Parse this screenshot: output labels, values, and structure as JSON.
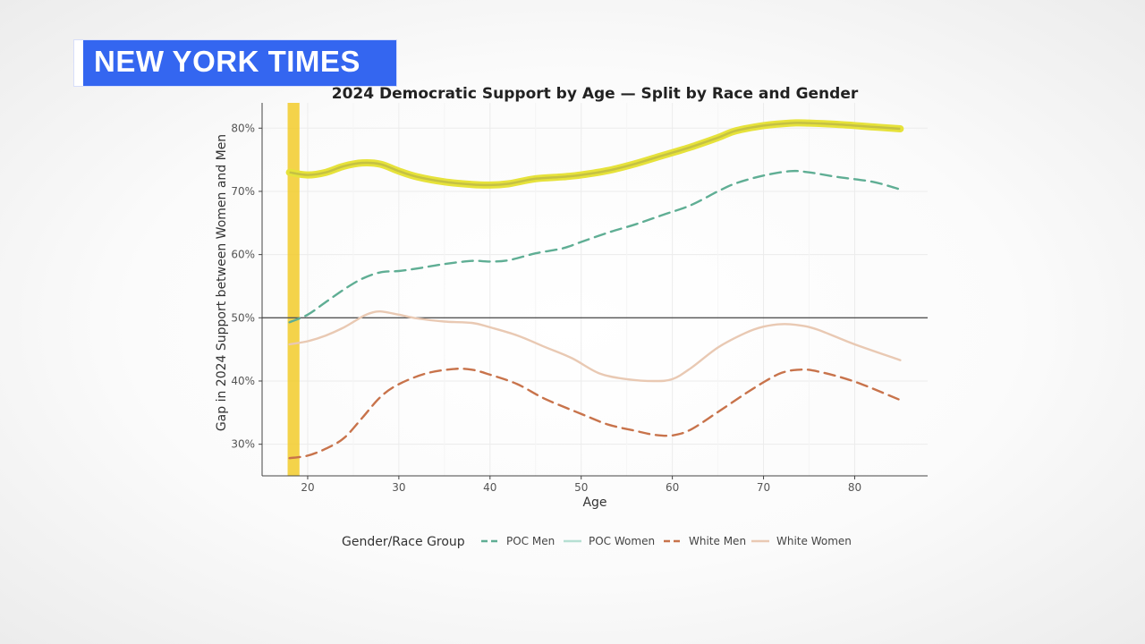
{
  "brand": {
    "label": "NEW YORK TIMES"
  },
  "chart_data": {
    "type": "line",
    "title": "2024 Democratic Support by Age — Split by Race and Gender",
    "xlabel": "Age",
    "ylabel": "Gap in 2024 Support between Women and Men",
    "xlim": [
      15,
      88
    ],
    "ylim": [
      25,
      84
    ],
    "x_ticks": [
      20,
      30,
      40,
      50,
      60,
      70,
      80
    ],
    "y_ticks": [
      30,
      40,
      50,
      60,
      70,
      80
    ],
    "y_tick_labels": [
      "30%",
      "40%",
      "50%",
      "60%",
      "70%",
      "80%"
    ],
    "reference_line": 50,
    "highlight_band": {
      "x_start": 17.8,
      "x_end": 19.1,
      "color": "#f2cb2a"
    },
    "grid": true,
    "legend": {
      "title": "Gender/Race Group",
      "position": "bottom"
    },
    "series": [
      {
        "name": "POC Men",
        "color": "#5fae94",
        "dash": "dashed",
        "highlight": false,
        "x": [
          18,
          20,
          22,
          24,
          26,
          28,
          30,
          32,
          35,
          38,
          40,
          42,
          45,
          48,
          50,
          53,
          56,
          59,
          62,
          65,
          67,
          70,
          73,
          75,
          78,
          82,
          85
        ],
        "y": [
          49.3,
          50.5,
          52.5,
          54.5,
          56.2,
          57.2,
          57.4,
          57.8,
          58.5,
          59.0,
          58.9,
          59.1,
          60.2,
          61.0,
          62.0,
          63.5,
          64.8,
          66.3,
          67.8,
          70.0,
          71.3,
          72.5,
          73.2,
          73.0,
          72.3,
          71.5,
          70.3
        ]
      },
      {
        "name": "POC Women",
        "color": "#b6e0d3",
        "dash": "solid",
        "highlight": true,
        "x": [
          18,
          20,
          22,
          24,
          26,
          28,
          30,
          32,
          35,
          38,
          40,
          42,
          45,
          48,
          50,
          53,
          56,
          59,
          62,
          65,
          67,
          70,
          73,
          75,
          78,
          82,
          85
        ],
        "y": [
          73.0,
          72.6,
          73.0,
          74.0,
          74.5,
          74.3,
          73.2,
          72.3,
          71.5,
          71.1,
          71.0,
          71.2,
          72.0,
          72.3,
          72.6,
          73.3,
          74.4,
          75.7,
          77.0,
          78.5,
          79.6,
          80.4,
          80.8,
          80.8,
          80.6,
          80.2,
          79.9
        ]
      },
      {
        "name": "White Men",
        "color": "#c8734b",
        "dash": "dashed",
        "highlight": false,
        "x": [
          18,
          20,
          22,
          24,
          26,
          28,
          30,
          33,
          36,
          38,
          40,
          43,
          46,
          50,
          53,
          56,
          58,
          60,
          62,
          65,
          68,
          70,
          72,
          74,
          76,
          80,
          85
        ],
        "y": [
          27.8,
          28.2,
          29.3,
          31.0,
          34.2,
          37.5,
          39.5,
          41.2,
          41.9,
          41.8,
          41.0,
          39.5,
          37.2,
          34.8,
          33.1,
          32.1,
          31.5,
          31.4,
          32.3,
          35.1,
          38.0,
          39.8,
          41.3,
          41.8,
          41.5,
          39.9,
          37.0
        ]
      },
      {
        "name": "White Women",
        "color": "#e9c9b3",
        "dash": "solid",
        "highlight": false,
        "x": [
          18,
          20,
          22,
          24,
          26,
          27,
          28,
          30,
          32,
          35,
          38,
          40,
          43,
          46,
          49,
          52,
          55,
          58,
          60,
          62,
          65,
          68,
          70,
          72,
          74,
          76,
          80,
          85
        ],
        "y": [
          45.8,
          46.3,
          47.2,
          48.5,
          50.2,
          50.8,
          51.0,
          50.5,
          49.9,
          49.4,
          49.2,
          48.5,
          47.2,
          45.4,
          43.6,
          41.2,
          40.3,
          40.0,
          40.3,
          42.0,
          45.3,
          47.6,
          48.6,
          49.0,
          48.8,
          48.1,
          45.8,
          43.3
        ]
      }
    ]
  }
}
